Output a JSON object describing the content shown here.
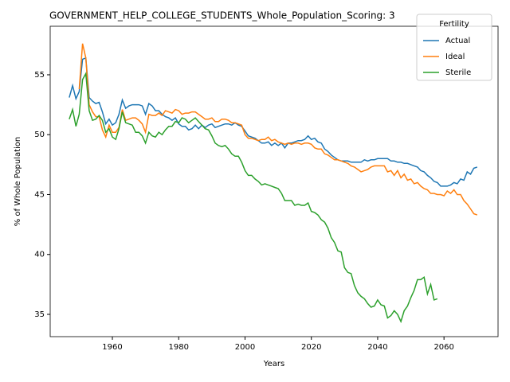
{
  "chart_data": {
    "type": "line",
    "title": "GOVERNMENT_HELP_COLLEGE_STUDENTS_Whole_Population_Scoring: 3",
    "xlabel": "Years",
    "ylabel": "% of Whole Population",
    "legend_title": "Fertility",
    "legend": "upper right",
    "grid": false,
    "xlim": [
      1941.25,
      2076.3
    ],
    "ylim": [
      33.14,
      59.05
    ],
    "xticks": [
      1960,
      1980,
      2000,
      2020,
      2040,
      2060
    ],
    "yticks": [
      35,
      40,
      45,
      50,
      55
    ],
    "x": [
      1947,
      1948,
      1949,
      1950,
      1951,
      1952,
      1953,
      1954,
      1955,
      1956,
      1957,
      1958,
      1959,
      1960,
      1961,
      1962,
      1963,
      1964,
      1965,
      1966,
      1967,
      1968,
      1969,
      1970,
      1971,
      1972,
      1973,
      1974,
      1975,
      1976,
      1977,
      1978,
      1979,
      1980,
      1981,
      1982,
      1983,
      1984,
      1985,
      1986,
      1987,
      1988,
      1989,
      1990,
      1991,
      1992,
      1993,
      1994,
      1995,
      1996,
      1997,
      1998,
      1999,
      2000,
      2001,
      2002,
      2003,
      2004,
      2005,
      2006,
      2007,
      2008,
      2009,
      2010,
      2011,
      2012,
      2013,
      2014,
      2015,
      2016,
      2017,
      2018,
      2019,
      2020,
      2021,
      2022,
      2023,
      2024,
      2025,
      2026,
      2027,
      2028,
      2029,
      2030,
      2031,
      2032,
      2033,
      2034,
      2035,
      2036,
      2037,
      2038,
      2039,
      2040,
      2041,
      2042,
      2043,
      2044,
      2045,
      2046,
      2047,
      2048,
      2049,
      2050,
      2051,
      2052,
      2053,
      2054,
      2055,
      2056,
      2057,
      2058,
      2059,
      2060,
      2061,
      2062,
      2063,
      2064,
      2065,
      2066,
      2067,
      2068,
      2069,
      2070
    ],
    "series": [
      {
        "name": "Actual",
        "color": "#1f77b4",
        "values": [
          53.1,
          54.1,
          53.0,
          53.6,
          56.3,
          56.4,
          53.1,
          52.8,
          52.6,
          52.7,
          51.9,
          50.9,
          51.3,
          50.8,
          51.0,
          51.7,
          52.9,
          52.2,
          52.4,
          52.5,
          52.5,
          52.5,
          52.4,
          51.7,
          52.6,
          52.4,
          52.0,
          52.0,
          51.7,
          51.5,
          51.4,
          51.2,
          51.4,
          50.9,
          50.7,
          50.7,
          50.4,
          50.5,
          50.8,
          50.5,
          50.8,
          50.6,
          50.8,
          50.9,
          50.6,
          50.7,
          50.8,
          50.9,
          50.9,
          50.8,
          51.0,
          50.8,
          50.7,
          50.3,
          49.9,
          49.8,
          49.7,
          49.5,
          49.3,
          49.3,
          49.4,
          49.1,
          49.3,
          49.1,
          49.3,
          48.9,
          49.3,
          49.3,
          49.4,
          49.5,
          49.5,
          49.6,
          49.9,
          49.6,
          49.7,
          49.4,
          49.3,
          48.8,
          48.6,
          48.3,
          48.1,
          47.9,
          47.8,
          47.8,
          47.8,
          47.7,
          47.7,
          47.7,
          47.7,
          47.9,
          47.8,
          47.9,
          47.9,
          48.0,
          48.0,
          48.0,
          48.0,
          47.8,
          47.8,
          47.7,
          47.7,
          47.6,
          47.6,
          47.5,
          47.4,
          47.3,
          47.0,
          46.9,
          46.6,
          46.4,
          46.1,
          46.0,
          45.7,
          45.7,
          45.7,
          45.8,
          46.0,
          45.9,
          46.3,
          46.2,
          46.9,
          46.7,
          47.2,
          47.3
        ]
      },
      {
        "name": "Ideal",
        "color": "#ff7f0e",
        "values": [
          null,
          null,
          null,
          53.8,
          57.6,
          56.4,
          52.5,
          51.9,
          51.5,
          51.5,
          50.4,
          49.8,
          50.8,
          50.2,
          50.2,
          50.6,
          52.1,
          51.2,
          51.3,
          51.4,
          51.4,
          51.2,
          50.9,
          50.2,
          51.7,
          51.6,
          51.6,
          51.8,
          51.6,
          52.0,
          51.9,
          51.8,
          52.1,
          52.0,
          51.7,
          51.8,
          51.8,
          51.9,
          51.9,
          51.7,
          51.5,
          51.3,
          51.3,
          51.4,
          51.1,
          51.1,
          51.3,
          51.3,
          51.2,
          51.0,
          51.0,
          50.9,
          50.8,
          50.0,
          49.7,
          49.7,
          49.6,
          49.5,
          49.6,
          49.6,
          49.8,
          49.5,
          49.6,
          49.4,
          49.3,
          49.2,
          49.3,
          49.2,
          49.3,
          49.3,
          49.2,
          49.3,
          49.3,
          49.2,
          48.9,
          48.8,
          48.8,
          48.4,
          48.3,
          48.1,
          47.9,
          47.9,
          47.8,
          47.7,
          47.6,
          47.4,
          47.3,
          47.1,
          46.9,
          47.0,
          47.1,
          47.3,
          47.4,
          47.4,
          47.4,
          47.4,
          46.9,
          47.0,
          46.6,
          47.0,
          46.4,
          46.7,
          46.2,
          46.3,
          45.9,
          46.0,
          45.7,
          45.5,
          45.4,
          45.1,
          45.1,
          45.0,
          45.0,
          44.9,
          45.3,
          45.1,
          45.4,
          45.0,
          45.0,
          44.5,
          44.2,
          43.8,
          43.4,
          43.3
        ]
      },
      {
        "name": "Sterile",
        "color": "#2ca02c",
        "values": [
          51.3,
          52.1,
          50.7,
          51.7,
          54.6,
          55.1,
          52.0,
          51.2,
          51.3,
          51.6,
          51.2,
          50.2,
          50.5,
          49.8,
          49.6,
          50.5,
          51.9,
          51.0,
          50.9,
          50.8,
          50.2,
          50.2,
          49.9,
          49.3,
          50.2,
          49.9,
          49.8,
          50.2,
          50.0,
          50.4,
          50.7,
          50.7,
          51.1,
          51.0,
          51.4,
          51.3,
          51.0,
          51.2,
          51.4,
          51.1,
          50.8,
          50.5,
          50.4,
          49.9,
          49.3,
          49.1,
          49.0,
          49.1,
          48.8,
          48.4,
          48.2,
          48.2,
          47.7,
          47.0,
          46.6,
          46.6,
          46.3,
          46.1,
          45.8,
          45.9,
          45.8,
          45.7,
          45.6,
          45.5,
          45.1,
          44.5,
          44.5,
          44.5,
          44.1,
          44.2,
          44.1,
          44.1,
          44.3,
          43.6,
          43.5,
          43.3,
          42.9,
          42.7,
          42.2,
          41.4,
          41.0,
          40.3,
          40.2,
          38.9,
          38.5,
          38.4,
          37.4,
          36.8,
          36.5,
          36.3,
          35.9,
          35.6,
          35.7,
          36.2,
          35.8,
          35.7,
          34.7,
          34.9,
          35.3,
          35.0,
          34.4,
          35.3,
          35.7,
          36.4,
          37.0,
          37.9,
          37.9,
          38.1,
          36.7,
          37.5,
          36.2,
          36.3,
          null,
          null,
          null,
          null,
          null,
          null,
          null,
          null,
          null,
          null,
          null,
          null
        ]
      }
    ]
  }
}
